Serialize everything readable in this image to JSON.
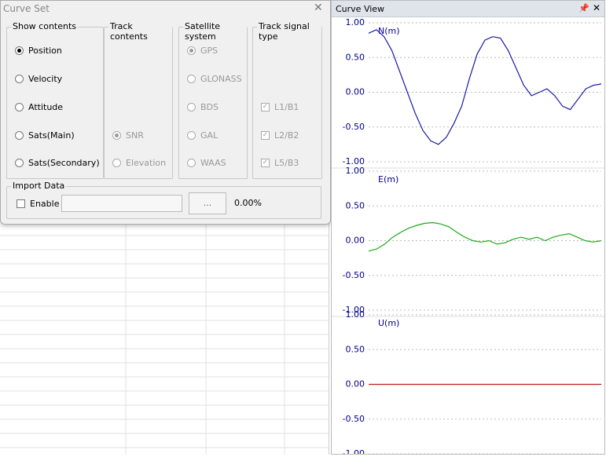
{
  "dialog": {
    "title": "Curve Set",
    "groups": [
      {
        "title": "Show contents",
        "control": "radio",
        "disabled": false,
        "items": [
          {
            "label": "Position",
            "checked": true
          },
          {
            "label": "Velocity",
            "checked": false
          },
          {
            "label": "Attitude",
            "checked": false
          },
          {
            "label": "Sats(Main)",
            "checked": false
          },
          {
            "label": "Sats(Secondary)",
            "checked": false
          }
        ]
      },
      {
        "title": "Track contents",
        "control": "radio",
        "disabled": true,
        "items": [
          {
            "label": "SNR",
            "checked": true
          },
          {
            "label": "Elevation",
            "checked": false
          }
        ]
      },
      {
        "title": "Satellite system",
        "control": "radio",
        "disabled": true,
        "items": [
          {
            "label": "GPS",
            "checked": true
          },
          {
            "label": "GLONASS",
            "checked": false
          },
          {
            "label": "BDS",
            "checked": false
          },
          {
            "label": "GAL",
            "checked": false
          },
          {
            "label": "WAAS",
            "checked": false
          }
        ]
      },
      {
        "title": "Track signal type",
        "control": "checkbox",
        "disabled": true,
        "items": [
          {
            "label": "L1/B1",
            "checked": true
          },
          {
            "label": "L2/B2",
            "checked": true
          },
          {
            "label": "L5/B3",
            "checked": true
          }
        ]
      }
    ],
    "import": {
      "title": "Import Data",
      "enable": "Enable",
      "button": "...",
      "progress": "0.00%"
    }
  },
  "curve_view": {
    "title": "Curve View",
    "charts": [
      {
        "type": "line",
        "label": "N(m)",
        "color": "#1a1aa6",
        "grid": true,
        "ylim": [
          -1,
          1
        ],
        "yticks": [
          {
            "value": -1,
            "label": "-1.00"
          },
          {
            "value": -0.5,
            "label": "-0.50"
          },
          {
            "value": 0,
            "label": "0.00"
          },
          {
            "value": 0.5,
            "label": "0.50"
          },
          {
            "value": 1,
            "label": "1.00"
          }
        ],
        "values": [
          0.85,
          0.9,
          0.8,
          0.6,
          0.3,
          0.0,
          -0.3,
          -0.55,
          -0.7,
          -0.75,
          -0.65,
          -0.45,
          -0.2,
          0.2,
          0.55,
          0.75,
          0.8,
          0.78,
          0.6,
          0.35,
          0.1,
          -0.05,
          0.0,
          0.05,
          -0.05,
          -0.2,
          -0.25,
          -0.1,
          0.05,
          0.1,
          0.12
        ]
      },
      {
        "type": "line",
        "label": "E(m)",
        "color": "#1aaa1a",
        "grid": true,
        "ylim": [
          -1,
          1
        ],
        "yticks": [
          {
            "value": -1,
            "label": "-1.00"
          },
          {
            "value": -0.5,
            "label": "-0.50"
          },
          {
            "value": 0,
            "label": "0.00"
          },
          {
            "value": 0.5,
            "label": "0.50"
          },
          {
            "value": 1,
            "label": "1.00"
          }
        ],
        "values": [
          -0.15,
          -0.12,
          -0.05,
          0.05,
          0.12,
          0.18,
          0.22,
          0.25,
          0.26,
          0.24,
          0.2,
          0.12,
          0.05,
          0.0,
          -0.02,
          0.0,
          -0.05,
          -0.03,
          0.02,
          0.05,
          0.02,
          0.05,
          0.0,
          0.05,
          0.08,
          0.1,
          0.05,
          0.0,
          -0.02,
          0.0
        ]
      },
      {
        "type": "line",
        "label": "U(m)",
        "color": "#c01818",
        "grid": true,
        "ylim": [
          -1,
          1
        ],
        "yticks": [
          {
            "value": -1,
            "label": "-1.00"
          },
          {
            "value": -0.5,
            "label": "-0.50"
          },
          {
            "value": 0,
            "label": "0.00"
          },
          {
            "value": 0.5,
            "label": "0.50"
          },
          {
            "value": 1,
            "label": "1.00"
          }
        ],
        "values": [
          0,
          0,
          0,
          0,
          0,
          0,
          0,
          0,
          0,
          0
        ]
      }
    ]
  }
}
